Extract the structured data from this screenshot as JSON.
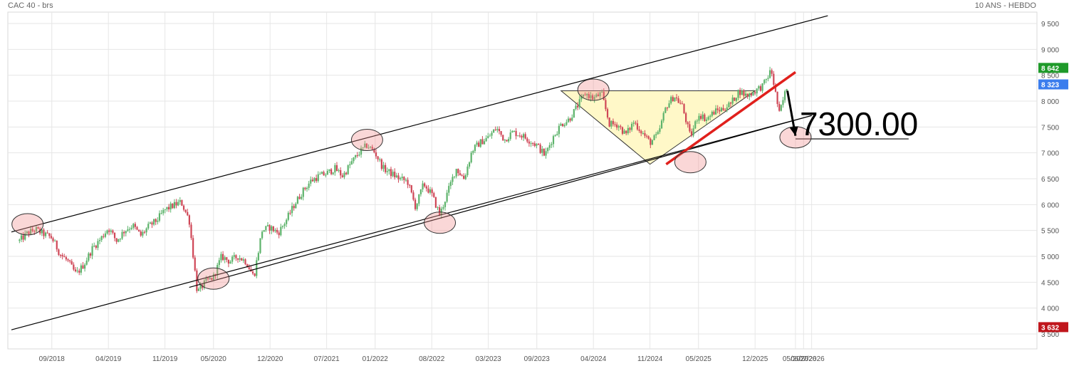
{
  "header": {
    "instrument": "CAC 40 - brs",
    "period": "10 ANS - HEBDO"
  },
  "chart_data": {
    "type": "candlestick",
    "x_ticks": [
      "09/2018",
      "04/2019",
      "11/2019",
      "05/2020",
      "12/2020",
      "07/2021",
      "01/2022",
      "08/2022",
      "03/2023",
      "09/2023",
      "04/2024",
      "11/2024",
      "05/2025",
      "12/2025",
      "05/2026",
      "06/2026",
      "07/2026"
    ],
    "y_ticks": [
      "3 500",
      "4 000",
      "4 500",
      "5 000",
      "5 500",
      "6 000",
      "6 500",
      "7 000",
      "7 500",
      "8 000",
      "8 500",
      "9 000",
      "9 500"
    ],
    "ylim": [
      3450,
      9700
    ],
    "price_badges": [
      {
        "label": "8 642",
        "value": 8642,
        "color": "#1f9a2a"
      },
      {
        "label": "8 323",
        "value": 8323,
        "color": "#3b7ded"
      },
      {
        "label": "3 632",
        "value": 3632,
        "color": "#c0161c"
      }
    ],
    "annotation": {
      "text": "7300.00",
      "value": 7300
    },
    "price_path": [
      [
        "2018-05",
        5300
      ],
      [
        "2018-06",
        5450
      ],
      [
        "2018-07",
        5520
      ],
      [
        "2018-08",
        5430
      ],
      [
        "2018-09",
        5360
      ],
      [
        "2018-10",
        5050
      ],
      [
        "2018-11",
        4900
      ],
      [
        "2018-12",
        4650
      ],
      [
        "2019-01",
        4850
      ],
      [
        "2019-02",
        5150
      ],
      [
        "2019-03",
        5330
      ],
      [
        "2019-04",
        5550
      ],
      [
        "2019-05",
        5300
      ],
      [
        "2019-06",
        5500
      ],
      [
        "2019-07",
        5600
      ],
      [
        "2019-08",
        5400
      ],
      [
        "2019-09",
        5580
      ],
      [
        "2019-10",
        5700
      ],
      [
        "2019-11",
        5900
      ],
      [
        "2019-12",
        5980
      ],
      [
        "2020-01",
        6050
      ],
      [
        "2020-02",
        5700
      ],
      [
        "2020-03",
        4300
      ],
      [
        "2020-04",
        4500
      ],
      [
        "2020-05",
        4600
      ],
      [
        "2020-06",
        5000
      ],
      [
        "2020-07",
        4900
      ],
      [
        "2020-08",
        5000
      ],
      [
        "2020-09",
        4900
      ],
      [
        "2020-10",
        4600
      ],
      [
        "2020-11",
        5500
      ],
      [
        "2020-12",
        5560
      ],
      [
        "2021-01",
        5450
      ],
      [
        "2021-02",
        5700
      ],
      [
        "2021-03",
        6000
      ],
      [
        "2021-04",
        6250
      ],
      [
        "2021-05",
        6450
      ],
      [
        "2021-06",
        6550
      ],
      [
        "2021-07",
        6600
      ],
      [
        "2021-08",
        6700
      ],
      [
        "2021-09",
        6550
      ],
      [
        "2021-10",
        6800
      ],
      [
        "2021-11",
        7000
      ],
      [
        "2021-12",
        7150
      ],
      [
        "2022-01",
        7000
      ],
      [
        "2022-02",
        6700
      ],
      [
        "2022-03",
        6600
      ],
      [
        "2022-04",
        6500
      ],
      [
        "2022-05",
        6450
      ],
      [
        "2022-06",
        5950
      ],
      [
        "2022-07",
        6400
      ],
      [
        "2022-08",
        6200
      ],
      [
        "2022-09",
        5800
      ],
      [
        "2022-10",
        6250
      ],
      [
        "2022-11",
        6700
      ],
      [
        "2022-12",
        6500
      ],
      [
        "2023-01",
        7050
      ],
      [
        "2023-02",
        7200
      ],
      [
        "2023-03",
        7300
      ],
      [
        "2023-04",
        7480
      ],
      [
        "2023-05",
        7250
      ],
      [
        "2023-06",
        7400
      ],
      [
        "2023-07",
        7350
      ],
      [
        "2023-08",
        7250
      ],
      [
        "2023-09",
        7150
      ],
      [
        "2023-10",
        6950
      ],
      [
        "2023-11",
        7300
      ],
      [
        "2023-12",
        7550
      ],
      [
        "2024-01",
        7650
      ],
      [
        "2024-02",
        7900
      ],
      [
        "2024-03",
        8150
      ],
      [
        "2024-04",
        8050
      ],
      [
        "2024-05",
        8150
      ],
      [
        "2024-06",
        7550
      ],
      [
        "2024-07",
        7550
      ],
      [
        "2024-08",
        7350
      ],
      [
        "2024-09",
        7600
      ],
      [
        "2024-10",
        7400
      ],
      [
        "2024-11",
        7200
      ],
      [
        "2024-12",
        7350
      ],
      [
        "2025-01",
        7900
      ],
      [
        "2025-02",
        8100
      ],
      [
        "2025-03",
        7900
      ],
      [
        "2025-04",
        7300
      ],
      [
        "2025-05",
        7750
      ],
      [
        "2025-06",
        7650
      ],
      [
        "2025-07",
        7800
      ],
      [
        "2025-08",
        7850
      ],
      [
        "2025-09",
        7950
      ],
      [
        "2025-10",
        8200
      ],
      [
        "2025-11",
        8100
      ],
      [
        "2025-12",
        8200
      ],
      [
        "2026-01",
        8300
      ],
      [
        "2026-02",
        8600
      ],
      [
        "2026-03",
        7750
      ],
      [
        "2026-04",
        8323
      ]
    ],
    "trend_lines": [
      {
        "from": [
          "2018-04",
          5470
        ],
        "to": [
          "2026-09",
          9650
        ],
        "color": "#000000"
      },
      {
        "from": [
          "2018-04",
          3580
        ],
        "to": [
          "2026-07",
          7720
        ],
        "color": "#000000"
      },
      {
        "from": [
          "2020-02",
          4400
        ],
        "to": [
          "2026-07",
          7720
        ],
        "color": "#000000"
      },
      {
        "from": [
          "2025-01",
          6780
        ],
        "to": [
          "2026-05",
          8560
        ],
        "color": "#e0201c"
      },
      {
        "from": [
          "2026-05",
          7270
        ],
        "to": [
          "2027-07",
          7270
        ],
        "color": "#000000"
      }
    ],
    "triangle": [
      [
        "2023-12",
        8200
      ],
      [
        "2025-12",
        8200
      ],
      [
        "2024-11",
        6780
      ]
    ],
    "circles": [
      [
        "2018-06",
        5620
      ],
      [
        "2020-05",
        4570
      ],
      [
        "2021-12",
        7250
      ],
      [
        "2022-09",
        5650
      ],
      [
        "2024-04",
        8220
      ],
      [
        "2025-04",
        6820
      ],
      [
        "2026-05",
        7300
      ]
    ],
    "arrow": {
      "from": [
        "2026-04",
        8200
      ],
      "to": [
        "2026-05",
        7330
      ]
    }
  }
}
